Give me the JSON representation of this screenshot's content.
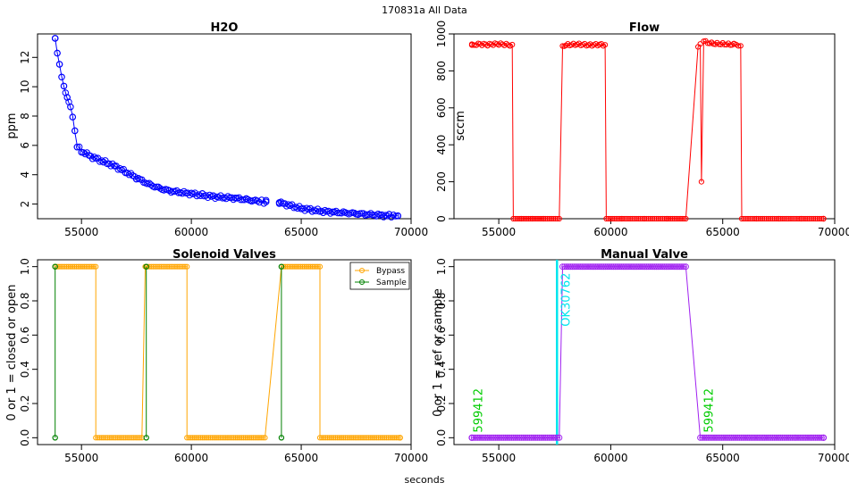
{
  "figure": {
    "title": "170831a   All Data",
    "xlabel": "seconds"
  },
  "chart_data": [
    {
      "type": "scatter",
      "title": "H2O",
      "xlabel": "",
      "ylabel": "ppm",
      "xlim": [
        53000,
        70000
      ],
      "ylim": [
        1,
        13.6
      ],
      "xticks": [
        55000,
        60000,
        65000,
        70000
      ],
      "yticks": [
        2,
        4,
        6,
        8,
        10,
        12
      ],
      "grid": false,
      "color": "#0000ff",
      "series": [
        {
          "segments": [
            [
              [
                53800,
                13.3
              ],
              [
                53900,
                12.3
              ],
              [
                54000,
                11.5
              ],
              [
                54100,
                10.7
              ],
              [
                54200,
                10.0
              ],
              [
                54350,
                9.2
              ],
              [
                54500,
                8.6
              ],
              [
                54600,
                8.0
              ],
              [
                54700,
                6.9
              ],
              [
                54800,
                6.0
              ],
              [
                55000,
                5.6
              ],
              [
                55500,
                5.2
              ],
              [
                56000,
                4.9
              ],
              [
                56500,
                4.6
              ],
              [
                57000,
                4.2
              ],
              [
                57500,
                3.8
              ],
              [
                58000,
                3.4
              ],
              [
                58500,
                3.1
              ],
              [
                59000,
                2.9
              ],
              [
                59500,
                2.8
              ],
              [
                60000,
                2.7
              ],
              [
                60500,
                2.6
              ],
              [
                61000,
                2.5
              ],
              [
                61500,
                2.45
              ],
              [
                62000,
                2.4
              ],
              [
                62500,
                2.3
              ],
              [
                63000,
                2.2
              ],
              [
                63400,
                2.15
              ]
            ],
            [
              [
                64000,
                2.1
              ],
              [
                64500,
                1.9
              ],
              [
                65000,
                1.7
              ],
              [
                65500,
                1.6
              ],
              [
                66000,
                1.5
              ],
              [
                66500,
                1.45
              ],
              [
                67000,
                1.4
              ],
              [
                67500,
                1.35
              ],
              [
                68000,
                1.3
              ],
              [
                68500,
                1.25
              ],
              [
                69000,
                1.2
              ],
              [
                69400,
                1.2
              ]
            ]
          ]
        }
      ]
    },
    {
      "type": "line",
      "title": "Flow",
      "xlabel": "",
      "ylabel": "sccm",
      "xlim": [
        53000,
        70000
      ],
      "ylim": [
        0,
        1000
      ],
      "xticks": [
        55000,
        60000,
        65000,
        70000
      ],
      "yticks": [
        0,
        200,
        400,
        600,
        800,
        1000
      ],
      "grid": false,
      "color": "#ff0000",
      "series": [
        {
          "segments": [
            [
              [
                53800,
                940
              ],
              [
                54000,
                945
              ],
              [
                54500,
                942
              ],
              [
                55000,
                946
              ],
              [
                55500,
                940
              ],
              [
                55600,
                940
              ],
              [
                55650,
                0
              ],
              [
                56000,
                0
              ],
              [
                56500,
                0
              ],
              [
                57000,
                0
              ],
              [
                57700,
                0
              ],
              [
                57850,
                930
              ],
              [
                58000,
                940
              ],
              [
                58500,
                944
              ],
              [
                59000,
                940
              ],
              [
                59500,
                942
              ],
              [
                59750,
                940
              ],
              [
                59800,
                0
              ],
              [
                60500,
                0
              ],
              [
                61500,
                0
              ],
              [
                62500,
                0
              ],
              [
                63350,
                0
              ],
              [
                63900,
                930
              ],
              [
                64000,
                940
              ],
              [
                64050,
                200
              ],
              [
                64150,
                960
              ],
              [
                64500,
                948
              ],
              [
                65000,
                945
              ],
              [
                65500,
                942
              ],
              [
                65800,
                940
              ],
              [
                65850,
                0
              ],
              [
                66500,
                0
              ],
              [
                67500,
                0
              ],
              [
                68500,
                0
              ],
              [
                69500,
                0
              ]
            ]
          ]
        }
      ],
      "annotations": [
        {
          "x": 64050,
          "y": 200,
          "label": ""
        }
      ]
    },
    {
      "type": "line",
      "title": "Solenoid Valves",
      "xlabel": "",
      "ylabel": "0 or 1 = closed or open",
      "xlim": [
        53000,
        70000
      ],
      "ylim": [
        -0.04,
        1.04
      ],
      "xticks": [
        55000,
        60000,
        65000,
        70000
      ],
      "yticks": [
        0.0,
        0.2,
        0.4,
        0.6,
        0.8,
        1.0
      ],
      "grid": false,
      "legend": "top-right",
      "series": [
        {
          "name": "Bypass",
          "color": "#ffa500",
          "segments": [
            [
              [
                53800,
                1
              ],
              [
                55650,
                1
              ],
              [
                55650,
                0
              ],
              [
                57750,
                0
              ],
              [
                57900,
                1
              ],
              [
                59800,
                1
              ],
              [
                59800,
                0
              ],
              [
                63350,
                0
              ],
              [
                64100,
                1
              ],
              [
                65850,
                1
              ],
              [
                65850,
                0
              ],
              [
                69500,
                0
              ]
            ]
          ]
        },
        {
          "name": "Sample",
          "color": "#008000",
          "segments": [
            [
              [
                53800,
                0
              ],
              [
                53800,
                1
              ]
            ],
            [
              [
                57950,
                1
              ],
              [
                57950,
                0
              ]
            ],
            [
              [
                64100,
                0
              ],
              [
                64100,
                1
              ]
            ]
          ]
        }
      ]
    },
    {
      "type": "line",
      "title": "Manual Valve",
      "xlabel": "",
      "ylabel": "0 or 1 = ref or sample",
      "xlim": [
        53000,
        70000
      ],
      "ylim": [
        -0.04,
        1.04
      ],
      "xticks": [
        55000,
        60000,
        65000,
        70000
      ],
      "yticks": [
        0.0,
        0.2,
        0.4,
        0.6,
        0.8,
        1.0
      ],
      "grid": false,
      "color": "#a020f0",
      "series": [
        {
          "segments": [
            [
              [
                53800,
                0
              ],
              [
                57700,
                0
              ],
              [
                57850,
                1
              ],
              [
                63350,
                1
              ],
              [
                64000,
                0
              ],
              [
                69500,
                0
              ]
            ]
          ]
        }
      ],
      "vline": {
        "x": 57600,
        "color": "#00e5ee"
      },
      "annotations": [
        {
          "x": 54100,
          "y": 0.03,
          "label": "599412",
          "color": "#00cc00"
        },
        {
          "x": 58000,
          "y": 0.65,
          "label": "OK30762",
          "color": "#00e5ee"
        },
        {
          "x": 64400,
          "y": 0.03,
          "label": "599412",
          "color": "#00cc00"
        }
      ]
    }
  ]
}
